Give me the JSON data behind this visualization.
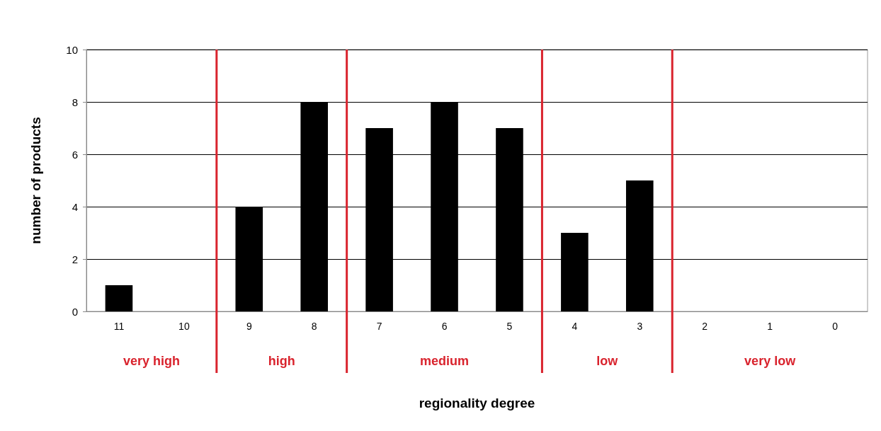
{
  "chart_data": {
    "type": "bar",
    "xlabel": "regionality degree",
    "ylabel": "number of products",
    "x": [
      11,
      10,
      9,
      8,
      7,
      6,
      5,
      4,
      3,
      2,
      1,
      0
    ],
    "values": [
      1,
      0,
      4,
      8,
      7,
      8,
      7,
      3,
      5,
      0,
      0,
      0
    ],
    "color": "#000000",
    "xlim": [
      11.5,
      -0.5
    ],
    "xticks": [
      11,
      10,
      9,
      8,
      7,
      6,
      5,
      4,
      3,
      2,
      1,
      0
    ],
    "ylim": [
      0,
      10
    ],
    "yticks": [
      0,
      2,
      4,
      6,
      8,
      10
    ],
    "grid": "y",
    "ref_lines": [
      {
        "axis": "x",
        "value": 9.5,
        "color": "#d9232d"
      },
      {
        "axis": "x",
        "value": 7.5,
        "color": "#d9232d"
      },
      {
        "axis": "x",
        "value": 4.5,
        "color": "#d9232d"
      },
      {
        "axis": "x",
        "value": 2.5,
        "color": "#d9232d"
      }
    ],
    "annotations": [
      "very high",
      "high",
      "medium",
      "low",
      "very low"
    ]
  }
}
